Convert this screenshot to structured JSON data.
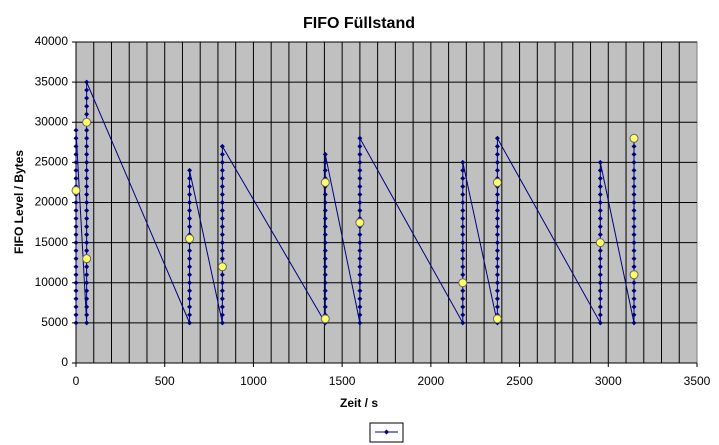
{
  "chart_data": {
    "type": "line",
    "title": "FIFO Füllstand",
    "x_label": "Zeit / s",
    "y_label": "FIFO Level / Bytes",
    "xlim": [
      0,
      3500
    ],
    "xticks": [
      0,
      500,
      1000,
      1500,
      2000,
      2500,
      3000,
      3500
    ],
    "minor_x_grid_step": 100,
    "ylim": [
      0,
      40000
    ],
    "yticks": [
      0,
      5000,
      10000,
      15000,
      20000,
      25000,
      30000,
      35000,
      40000
    ],
    "grid": true,
    "plot_background": "#c0c0c0",
    "legend": "bottom",
    "series": [
      {
        "color": "#000080",
        "marker": "diamond",
        "x": [
          0,
          0,
          0,
          0,
          0,
          0,
          0,
          0,
          0,
          0,
          0,
          0,
          0,
          0,
          0,
          0,
          0,
          0,
          0,
          0,
          0,
          0,
          0,
          0,
          0,
          60,
          60,
          60,
          60,
          60,
          60,
          60,
          60,
          60,
          60,
          60,
          60,
          60,
          60,
          60,
          60,
          60,
          60,
          60,
          60,
          60,
          60,
          60,
          60,
          60,
          60,
          60,
          60,
          60,
          60,
          60,
          640,
          640,
          640,
          640,
          640,
          640,
          640,
          640,
          640,
          640,
          640,
          640,
          640,
          640,
          640,
          640,
          640,
          640,
          640,
          640,
          825,
          825,
          825,
          825,
          825,
          825,
          825,
          825,
          825,
          825,
          825,
          825,
          825,
          825,
          825,
          825,
          825,
          825,
          825,
          825,
          825,
          825,
          825,
          1405,
          1405,
          1405,
          1405,
          1405,
          1405,
          1405,
          1405,
          1405,
          1405,
          1405,
          1405,
          1405,
          1405,
          1405,
          1405,
          1405,
          1405,
          1405,
          1405,
          1405,
          1405,
          1600,
          1600,
          1600,
          1600,
          1600,
          1600,
          1600,
          1600,
          1600,
          1600,
          1600,
          1600,
          1600,
          1600,
          1600,
          1600,
          1600,
          1600,
          1600,
          1600,
          1600,
          1600,
          1600,
          1600,
          2180,
          2180,
          2180,
          2180,
          2180,
          2180,
          2180,
          2180,
          2180,
          2180,
          2180,
          2180,
          2180,
          2180,
          2180,
          2180,
          2180,
          2180,
          2180,
          2180,
          2180,
          2375,
          2375,
          2375,
          2375,
          2375,
          2375,
          2375,
          2375,
          2375,
          2375,
          2375,
          2375,
          2375,
          2375,
          2375,
          2375,
          2375,
          2375,
          2375,
          2375,
          2375,
          2375,
          2375,
          2375,
          2955,
          2955,
          2955,
          2955,
          2955,
          2955,
          2955,
          2955,
          2955,
          2955,
          2955,
          2955,
          2955,
          2955,
          2955,
          2955,
          2955,
          2955,
          2955,
          2955,
          2955,
          3145,
          3145,
          3145,
          3145,
          3145,
          3145,
          3145,
          3145,
          3145,
          3145,
          3145,
          3145,
          3145,
          3145,
          3145,
          3145,
          3145,
          3145,
          3145,
          3145,
          3145,
          3145,
          3145,
          3145
        ],
        "values": [
          5000,
          6000,
          7000,
          8000,
          9000,
          10000,
          11000,
          12000,
          13000,
          14000,
          15000,
          16000,
          17000,
          18000,
          19000,
          20000,
          21000,
          22000,
          23000,
          24000,
          25000,
          26000,
          27000,
          28000,
          29000,
          5000,
          6000,
          7000,
          8000,
          9000,
          10000,
          11000,
          12000,
          13000,
          14000,
          15000,
          16000,
          17000,
          18000,
          19000,
          20000,
          21000,
          22000,
          23000,
          24000,
          25000,
          26000,
          27000,
          28000,
          29000,
          30000,
          31000,
          32000,
          33000,
          34000,
          35000,
          5000,
          6000,
          7000,
          8000,
          9000,
          10000,
          11000,
          12000,
          13000,
          14000,
          15000,
          16000,
          17000,
          18000,
          19000,
          20000,
          21000,
          22000,
          23000,
          24000,
          5000,
          6000,
          7000,
          8000,
          9000,
          10000,
          11000,
          12000,
          13000,
          14000,
          15000,
          16000,
          17000,
          18000,
          19000,
          20000,
          21000,
          22000,
          23000,
          24000,
          25000,
          26000,
          27000,
          5000,
          6000,
          7000,
          8000,
          9000,
          10000,
          11000,
          12000,
          13000,
          14000,
          15000,
          16000,
          17000,
          18000,
          19000,
          20000,
          21000,
          22000,
          23000,
          24000,
          25000,
          26000,
          5000,
          6000,
          7000,
          8000,
          9000,
          10000,
          11000,
          12000,
          13000,
          14000,
          15000,
          16000,
          17000,
          18000,
          19000,
          20000,
          21000,
          22000,
          23000,
          24000,
          25000,
          26000,
          27000,
          28000,
          5000,
          6000,
          7000,
          8000,
          9000,
          10000,
          11000,
          12000,
          13000,
          14000,
          15000,
          16000,
          17000,
          18000,
          19000,
          20000,
          21000,
          22000,
          23000,
          24000,
          25000,
          5000,
          6000,
          7000,
          8000,
          9000,
          10000,
          11000,
          12000,
          13000,
          14000,
          15000,
          16000,
          17000,
          18000,
          19000,
          20000,
          21000,
          22000,
          23000,
          24000,
          25000,
          26000,
          27000,
          28000,
          5000,
          6000,
          7000,
          8000,
          9000,
          10000,
          11000,
          12000,
          13000,
          14000,
          15000,
          16000,
          17000,
          18000,
          19000,
          20000,
          21000,
          22000,
          23000,
          24000,
          25000,
          5000,
          6000,
          7000,
          8000,
          9000,
          10000,
          11000,
          12000,
          13000,
          14000,
          15000,
          16000,
          17000,
          18000,
          19000,
          20000,
          21000,
          22000,
          23000,
          24000,
          25000,
          26000,
          27000,
          28000
        ]
      },
      {
        "color": "#ffff66",
        "marker": "circle",
        "x": [
          0,
          60,
          60,
          640,
          825,
          1405,
          1405,
          1600,
          2180,
          2375,
          2375,
          2955,
          3145,
          3145
        ],
        "values": [
          21500,
          30000,
          13000,
          15500,
          12000,
          22500,
          5500,
          17500,
          10000,
          22500,
          5500,
          15000,
          28000,
          11000
        ]
      }
    ]
  }
}
